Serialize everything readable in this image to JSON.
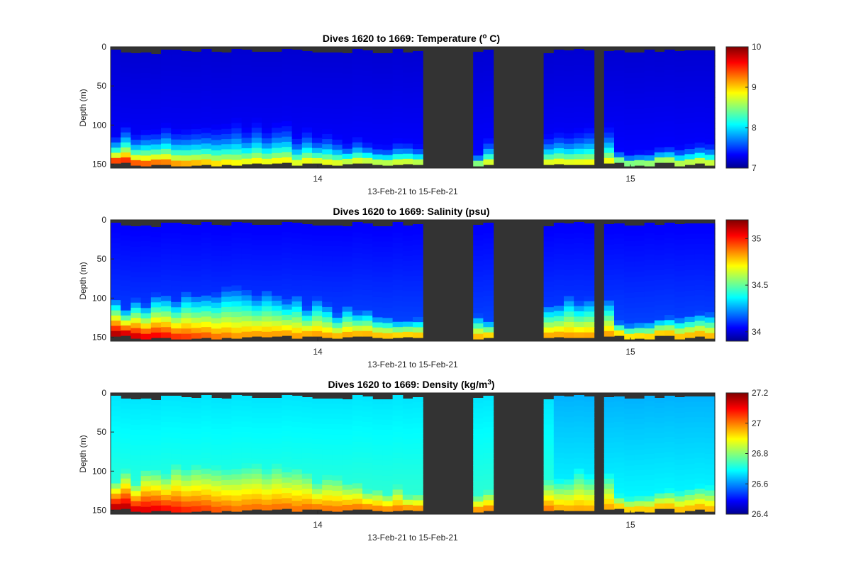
{
  "figure": {
    "background": "#ffffff"
  },
  "chart_data": [
    {
      "type": "heatmap",
      "title_main": "Dives 1620 to 1669: Temperature (",
      "title_sup": "o",
      "title_end": " C)",
      "xlabel": "13-Feb-21 to 15-Feb-21",
      "ylabel": "Depth (m)",
      "x_ticks": [
        "14",
        "15"
      ],
      "y_ticks": [
        "0",
        "50",
        "100",
        "150"
      ],
      "ylim": [
        0,
        155
      ],
      "y_reversed": true,
      "colorbar": {
        "min": 7,
        "max": 10,
        "ticks": [
          "7",
          "8",
          "9",
          "10"
        ],
        "colormap": "jet"
      },
      "missing_color": "#333333"
    },
    {
      "type": "heatmap",
      "title_main": "Dives 1620 to 1669: Salinity (psu)",
      "title_sup": "",
      "title_end": "",
      "xlabel": "13-Feb-21 to 15-Feb-21",
      "ylabel": "Depth (m)",
      "x_ticks": [
        "14",
        "15"
      ],
      "y_ticks": [
        "0",
        "50",
        "100",
        "150"
      ],
      "ylim": [
        0,
        155
      ],
      "y_reversed": true,
      "colorbar": {
        "min": 33.9,
        "max": 35.2,
        "ticks": [
          "34",
          "34.5",
          "35"
        ],
        "colormap": "jet"
      },
      "missing_color": "#333333"
    },
    {
      "type": "heatmap",
      "title_main": "Dives 1620 to 1669: Density (kg/m",
      "title_sup": "3",
      "title_end": ")",
      "xlabel": "13-Feb-21 to 15-Feb-21",
      "ylabel": "Depth (m)",
      "x_ticks": [
        "14",
        "15"
      ],
      "y_ticks": [
        "0",
        "50",
        "100",
        "150"
      ],
      "ylim": [
        0,
        155
      ],
      "y_reversed": true,
      "colorbar": {
        "min": 26.4,
        "max": 27.2,
        "ticks": [
          "26.4",
          "26.6",
          "26.8",
          "27",
          "27.2"
        ],
        "colormap": "jet"
      },
      "missing_color": "#333333"
    }
  ]
}
